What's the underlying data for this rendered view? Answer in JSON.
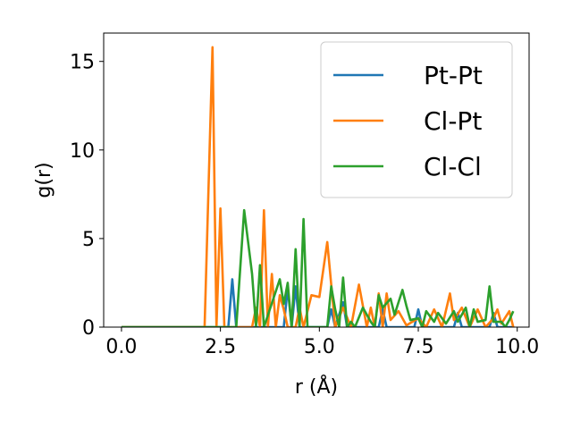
{
  "chart_data": {
    "type": "line",
    "title": "",
    "xlabel": "r (Å)",
    "ylabel": "g(r)",
    "xlim": [
      -0.45,
      10.3
    ],
    "ylim": [
      0,
      16.6
    ],
    "xticks": [
      "0.0",
      "2.5",
      "5.0",
      "7.5",
      "10.0"
    ],
    "xtick_values": [
      0,
      2.5,
      5,
      7.5,
      10
    ],
    "yticks": [
      "0",
      "5",
      "10",
      "15"
    ],
    "ytick_values": [
      0,
      5,
      10,
      15
    ],
    "grid": false,
    "legend_position": "top-right",
    "series": [
      {
        "name": "Pt-Pt",
        "color": "#1f77b4",
        "points": [
          [
            0,
            0
          ],
          [
            2.7,
            0
          ],
          [
            2.8,
            2.7
          ],
          [
            2.9,
            0
          ],
          [
            4.1,
            0
          ],
          [
            4.2,
            2.2
          ],
          [
            4.3,
            0
          ],
          [
            4.4,
            2.3
          ],
          [
            4.5,
            0
          ],
          [
            5.2,
            0
          ],
          [
            5.3,
            1.0
          ],
          [
            5.4,
            0
          ],
          [
            5.6,
            1.4
          ],
          [
            5.7,
            0
          ],
          [
            6.5,
            0
          ],
          [
            6.6,
            1.0
          ],
          [
            6.7,
            0
          ],
          [
            7.4,
            0
          ],
          [
            7.5,
            1.0
          ],
          [
            7.6,
            0
          ],
          [
            8.4,
            0
          ],
          [
            8.5,
            0.8
          ],
          [
            8.6,
            0
          ],
          [
            9.3,
            0
          ],
          [
            9.4,
            0.8
          ],
          [
            9.5,
            0
          ],
          [
            9.9,
            0
          ]
        ]
      },
      {
        "name": "Cl-Pt",
        "color": "#ff7f0e",
        "points": [
          [
            0,
            0
          ],
          [
            2.1,
            0
          ],
          [
            2.3,
            15.8
          ],
          [
            2.4,
            0
          ],
          [
            2.5,
            6.7
          ],
          [
            2.6,
            0
          ],
          [
            3.3,
            0
          ],
          [
            3.4,
            1.1
          ],
          [
            3.5,
            0
          ],
          [
            3.6,
            6.6
          ],
          [
            3.7,
            0
          ],
          [
            3.8,
            3.0
          ],
          [
            3.9,
            0
          ],
          [
            4.0,
            1.8
          ],
          [
            4.1,
            1.0
          ],
          [
            4.2,
            0
          ],
          [
            4.4,
            0
          ],
          [
            4.5,
            1.1
          ],
          [
            4.6,
            0
          ],
          [
            4.8,
            1.8
          ],
          [
            5.0,
            1.7
          ],
          [
            5.2,
            4.8
          ],
          [
            5.4,
            0
          ],
          [
            5.6,
            1.1
          ],
          [
            5.8,
            0
          ],
          [
            6.0,
            2.4
          ],
          [
            6.2,
            0
          ],
          [
            6.3,
            1.1
          ],
          [
            6.4,
            0
          ],
          [
            6.5,
            1.9
          ],
          [
            6.6,
            0
          ],
          [
            6.7,
            1.9
          ],
          [
            6.8,
            0.4
          ],
          [
            7.0,
            0.9
          ],
          [
            7.2,
            0.1
          ],
          [
            7.5,
            0.5
          ],
          [
            7.7,
            0
          ],
          [
            7.9,
            1.0
          ],
          [
            8.1,
            0
          ],
          [
            8.3,
            1.9
          ],
          [
            8.4,
            0.4
          ],
          [
            8.6,
            1.1
          ],
          [
            8.8,
            0
          ],
          [
            9.0,
            1.0
          ],
          [
            9.2,
            0
          ],
          [
            9.4,
            0.5
          ],
          [
            9.5,
            1.0
          ],
          [
            9.6,
            0.2
          ],
          [
            9.8,
            0.9
          ],
          [
            9.9,
            0
          ]
        ]
      },
      {
        "name": "Cl-Cl",
        "color": "#2ca02c",
        "points": [
          [
            0,
            0
          ],
          [
            2.9,
            0
          ],
          [
            3.1,
            6.6
          ],
          [
            3.3,
            3.0
          ],
          [
            3.4,
            0
          ],
          [
            3.5,
            3.5
          ],
          [
            3.6,
            0
          ],
          [
            4.0,
            2.7
          ],
          [
            4.1,
            1.3
          ],
          [
            4.2,
            2.5
          ],
          [
            4.3,
            0
          ],
          [
            4.4,
            4.4
          ],
          [
            4.5,
            0
          ],
          [
            4.6,
            6.1
          ],
          [
            4.7,
            0
          ],
          [
            5.2,
            0
          ],
          [
            5.3,
            2.3
          ],
          [
            5.4,
            1.0
          ],
          [
            5.5,
            0
          ],
          [
            5.6,
            2.8
          ],
          [
            5.7,
            0
          ],
          [
            5.8,
            0.3
          ],
          [
            5.9,
            0
          ],
          [
            6.1,
            1.1
          ],
          [
            6.3,
            0.3
          ],
          [
            6.4,
            0
          ],
          [
            6.5,
            1.8
          ],
          [
            6.6,
            1.1
          ],
          [
            6.8,
            1.6
          ],
          [
            6.9,
            0.7
          ],
          [
            7.1,
            2.1
          ],
          [
            7.2,
            1.2
          ],
          [
            7.3,
            0.4
          ],
          [
            7.5,
            0.5
          ],
          [
            7.6,
            0
          ],
          [
            7.7,
            0.9
          ],
          [
            7.9,
            0.3
          ],
          [
            8.0,
            0.8
          ],
          [
            8.2,
            0.2
          ],
          [
            8.4,
            0.9
          ],
          [
            8.5,
            0.3
          ],
          [
            8.7,
            1.1
          ],
          [
            8.8,
            0
          ],
          [
            8.9,
            1.0
          ],
          [
            9.0,
            0.3
          ],
          [
            9.2,
            0.4
          ],
          [
            9.3,
            2.3
          ],
          [
            9.4,
            0.3
          ],
          [
            9.6,
            0.3
          ],
          [
            9.7,
            0
          ],
          [
            9.8,
            0.4
          ],
          [
            9.9,
            0.9
          ]
        ]
      }
    ]
  }
}
